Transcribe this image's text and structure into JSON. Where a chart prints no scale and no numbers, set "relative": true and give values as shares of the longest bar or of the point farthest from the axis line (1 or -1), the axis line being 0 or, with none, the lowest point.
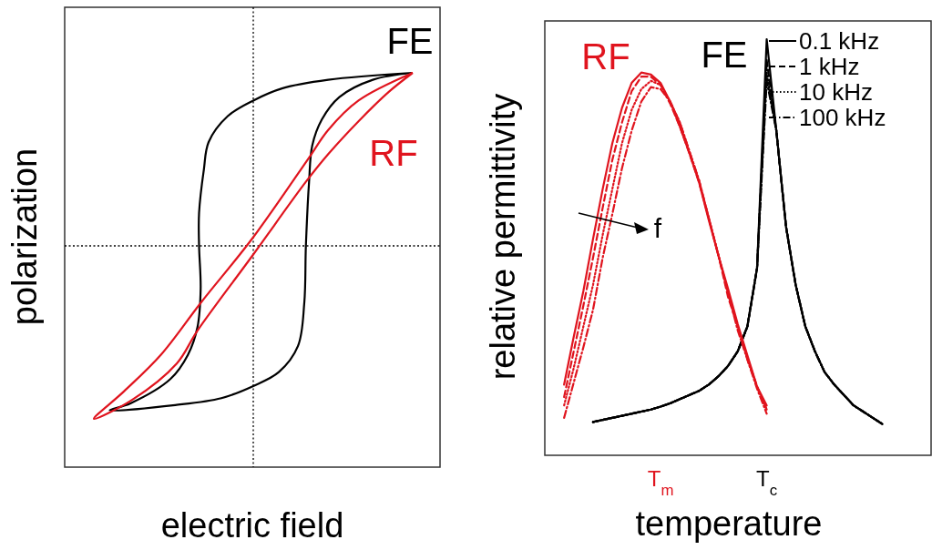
{
  "chart_data": [
    {
      "type": "other",
      "xlabel": "electric field",
      "ylabel": "polarization",
      "annotations": [
        "FE",
        "RF"
      ]
    },
    {
      "type": "line",
      "relative": true,
      "xlabel": "temperature",
      "ylabel": "relative permittivity",
      "legend": "top right",
      "categories": [
        null,
        null,
        null,
        null,
        null,
        null,
        null,
        null,
        null,
        null,
        null,
        null,
        "T$_{m}$",
        null,
        null,
        null,
        null,
        null,
        null,
        null,
        null,
        null,
        null,
        "T$_{c}$",
        null,
        null,
        null,
        null,
        null,
        null,
        null,
        null,
        null,
        null,
        null,
        null,
        null,
        null,
        null,
        null
      ],
      "annotations": [
        "RF",
        "FE",
        "f"
      ],
      "series": [
        {
          "name": "0.1 kHz",
          "color": "#000000",
          "line_style": "solid",
          "values": [
            null,
            null,
            null,
            null,
            null,
            0.08,
            0.085,
            0.09,
            0.095,
            0.1,
            0.105,
            0.11,
            0.117,
            0.125,
            0.135,
            0.145,
            0.155,
            0.17,
            0.19,
            0.215,
            0.25,
            0.31,
            0.45,
            1.0,
            0.78,
            0.55,
            0.41,
            0.31,
            0.25,
            0.2,
            0.17,
            0.145,
            0.12,
            0.105,
            0.09,
            0.075,
            null,
            null,
            null,
            null
          ]
        },
        {
          "name": "1 kHz",
          "color": "#000000",
          "line_style": "dashed",
          "values": [
            null,
            null,
            null,
            null,
            null,
            0.08,
            0.085,
            0.09,
            0.095,
            0.1,
            0.105,
            0.11,
            0.117,
            0.125,
            0.135,
            0.145,
            0.155,
            0.17,
            0.19,
            0.215,
            0.25,
            0.31,
            0.45,
            0.95,
            0.78,
            0.55,
            0.41,
            0.31,
            0.25,
            0.2,
            0.17,
            0.145,
            0.12,
            0.105,
            0.09,
            0.075,
            null,
            null,
            null,
            null
          ]
        },
        {
          "name": "10 kHz",
          "color": "#000000",
          "line_style": "dotted",
          "values": [
            null,
            null,
            null,
            null,
            null,
            0.08,
            0.085,
            0.09,
            0.095,
            0.1,
            0.105,
            0.11,
            0.117,
            0.125,
            0.135,
            0.145,
            0.155,
            0.17,
            0.19,
            0.215,
            0.25,
            0.31,
            0.45,
            0.92,
            0.78,
            0.55,
            0.41,
            0.31,
            0.25,
            0.2,
            0.17,
            0.145,
            0.12,
            0.105,
            0.09,
            0.075,
            null,
            null,
            null,
            null
          ]
        },
        {
          "name": "100 kHz",
          "color": "#000000",
          "line_style": "dashdot",
          "values": [
            null,
            null,
            null,
            null,
            null,
            0.08,
            0.085,
            0.09,
            0.095,
            0.1,
            0.105,
            0.11,
            0.117,
            0.125,
            0.135,
            0.145,
            0.155,
            0.17,
            0.19,
            0.215,
            0.25,
            0.31,
            0.45,
            0.9,
            0.78,
            0.55,
            0.41,
            0.31,
            0.25,
            0.2,
            0.17,
            0.145,
            0.12,
            0.105,
            0.09,
            0.075,
            null,
            null,
            null,
            null
          ]
        },
        {
          "color": "#e0141e",
          "line_style": "solid",
          "values": [
            null,
            null,
            0.17,
            0.285,
            0.395,
            0.52,
            0.64,
            0.75,
            0.835,
            0.895,
            0.92,
            0.915,
            0.895,
            0.85,
            0.79,
            0.725,
            0.655,
            0.565,
            0.48,
            0.4,
            0.315,
            0.24,
            0.165,
            0.12,
            null,
            null,
            null,
            null,
            null,
            null,
            null,
            null,
            null,
            null,
            null,
            null,
            null,
            null,
            null,
            null
          ]
        },
        {
          "color": "#e0141e",
          "line_style": "dashed",
          "values": [
            null,
            null,
            0.14,
            0.25,
            0.36,
            0.475,
            0.595,
            0.71,
            0.8,
            0.875,
            0.91,
            0.91,
            0.89,
            0.845,
            0.79,
            0.725,
            0.655,
            0.57,
            0.48,
            0.38,
            0.31,
            0.235,
            0.165,
            0.11,
            null,
            null,
            null,
            null,
            null,
            null,
            null,
            null,
            null,
            null,
            null,
            null,
            null,
            null,
            null,
            null
          ]
        },
        {
          "color": "#e0141e",
          "line_style": "dotted",
          "values": [
            null,
            null,
            0.12,
            0.21,
            0.31,
            0.41,
            0.53,
            0.64,
            0.75,
            0.83,
            0.88,
            0.9,
            0.89,
            0.85,
            0.8,
            0.73,
            0.66,
            0.57,
            0.48,
            0.39,
            0.31,
            0.23,
            0.165,
            0.11,
            null,
            null,
            null,
            null,
            null,
            null,
            null,
            null,
            null,
            null,
            null,
            null,
            null,
            null,
            null,
            null
          ]
        },
        {
          "color": "#e0141e",
          "line_style": "dashdot",
          "values": [
            null,
            null,
            0.09,
            0.175,
            0.26,
            0.35,
            0.475,
            0.58,
            0.69,
            0.78,
            0.85,
            0.885,
            0.88,
            0.85,
            0.8,
            0.73,
            0.66,
            0.57,
            0.48,
            0.39,
            0.3,
            0.23,
            0.16,
            0.1,
            null,
            null,
            null,
            null,
            null,
            null,
            null,
            null,
            null,
            null,
            null,
            null,
            null,
            null,
            null,
            null
          ]
        }
      ]
    }
  ]
}
